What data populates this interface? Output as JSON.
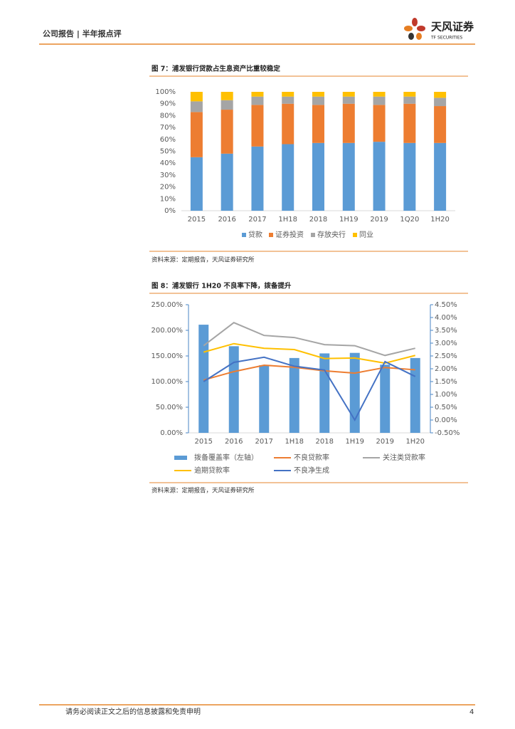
{
  "header": {
    "title": "公司报告 | 半年报点评",
    "logo_name": "天风证券",
    "logo_sub": "TF SECURITIES"
  },
  "chart_data": [
    {
      "type": "stacked_bar",
      "title": "图 7：浦发银行贷款占生息资产比重较稳定",
      "categories": [
        "2015",
        "2016",
        "2017",
        "1H18",
        "2018",
        "1H19",
        "2019",
        "1Q20",
        "1H20"
      ],
      "series": [
        {
          "name": "贷款",
          "color": "#5b9bd5",
          "values": [
            45,
            48,
            54,
            56,
            57,
            57,
            58,
            57,
            57
          ]
        },
        {
          "name": "证券投资",
          "color": "#ed7d31",
          "values": [
            38,
            37,
            35,
            34,
            32,
            33,
            31,
            33,
            31
          ]
        },
        {
          "name": "存放央行",
          "color": "#a5a5a5",
          "values": [
            9,
            8,
            7,
            6,
            7,
            6,
            7,
            6,
            7
          ]
        },
        {
          "name": "同业",
          "color": "#ffc000",
          "values": [
            8,
            7,
            4,
            4,
            4,
            4,
            4,
            4,
            5
          ]
        }
      ],
      "ylim": [
        0,
        100
      ],
      "yticks": [
        {
          "value": 0,
          "label": "0%"
        },
        {
          "value": 10,
          "label": "10%"
        },
        {
          "value": 20,
          "label": "20%"
        },
        {
          "value": 30,
          "label": "30%"
        },
        {
          "value": 40,
          "label": "40%"
        },
        {
          "value": 50,
          "label": "50%"
        },
        {
          "value": 60,
          "label": "60%"
        },
        {
          "value": 70,
          "label": "70%"
        },
        {
          "value": 80,
          "label": "80%"
        },
        {
          "value": 90,
          "label": "90%"
        },
        {
          "value": 100,
          "label": "100%"
        }
      ],
      "grid": false,
      "legend": "bottom",
      "source": "资料来源：定期报告，天风证券研究所"
    },
    {
      "type": "bar_line",
      "title": "图 8：浦发银行 1H20 不良率下降，拨备提升",
      "categories": [
        "2015",
        "2016",
        "2017",
        "1H18",
        "2018",
        "1H19",
        "2019",
        "1H20"
      ],
      "series": [
        {
          "name": "拨备覆盖率（左轴）",
          "type": "bar",
          "color": "#5b9bd5",
          "values": [
            211,
            169,
            132,
            146,
            155,
            156,
            133,
            146
          ]
        },
        {
          "name": "不良贷款率",
          "type": "line",
          "axis": "y2",
          "color": "#ed7d31",
          "values": [
            1.56,
            1.89,
            2.14,
            2.06,
            1.92,
            1.83,
            2.05,
            1.96
          ]
        },
        {
          "name": "关注类贷款率",
          "type": "line",
          "axis": "y2",
          "color": "#a5a5a5",
          "values": [
            2.9,
            3.8,
            3.3,
            3.22,
            2.94,
            2.9,
            2.52,
            2.8
          ]
        },
        {
          "name": "逾期贷款率",
          "type": "line",
          "axis": "y2",
          "color": "#ffc000",
          "values": [
            2.65,
            2.98,
            2.8,
            2.75,
            2.4,
            2.42,
            2.22,
            2.52
          ]
        },
        {
          "name": "不良净生成",
          "type": "line",
          "axis": "y2",
          "color": "#4472c4",
          "values": [
            1.5,
            2.25,
            2.45,
            2.1,
            1.95,
            0.0,
            2.28,
            1.7
          ]
        }
      ],
      "ylim": [
        0,
        250
      ],
      "yticks": [
        {
          "value": 0,
          "label": "0.00%"
        },
        {
          "value": 50,
          "label": "50.00%"
        },
        {
          "value": 100,
          "label": "100.00%"
        },
        {
          "value": 150,
          "label": "150.00%"
        },
        {
          "value": 200,
          "label": "200.00%"
        },
        {
          "value": 250,
          "label": "250.00%"
        }
      ],
      "y2lim": [
        -0.5,
        4.5
      ],
      "y2ticks": [
        {
          "value": -0.5,
          "label": "-0.50%"
        },
        {
          "value": 0,
          "label": "0.00%"
        },
        {
          "value": 0.5,
          "label": "0.50%"
        },
        {
          "value": 1,
          "label": "1.00%"
        },
        {
          "value": 1.5,
          "label": "1.50%"
        },
        {
          "value": 2,
          "label": "2.00%"
        },
        {
          "value": 2.5,
          "label": "2.50%"
        },
        {
          "value": 3,
          "label": "3.00%"
        },
        {
          "value": 3.5,
          "label": "3.50%"
        },
        {
          "value": 4,
          "label": "4.00%"
        },
        {
          "value": 4.5,
          "label": "4.50%"
        }
      ],
      "grid": false,
      "legend": "bottom",
      "source": "资料来源：定期报告，天风证券研究所"
    }
  ],
  "footer": {
    "disclaimer": "请务必阅读正文之后的信息披露和免责申明",
    "page": "4"
  }
}
